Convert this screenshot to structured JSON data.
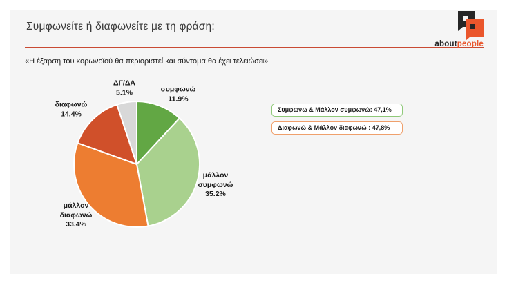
{
  "page": {
    "background": "#ffffff",
    "slide_background": "#f5f5f5"
  },
  "header": {
    "title": "Συμφωνείτε ή διαφωνείτε με τη φράση:",
    "rule_color": "#c94a33",
    "logo": {
      "text_black": "about",
      "text_orange": "people",
      "black": "#262626",
      "orange": "#ea562c"
    }
  },
  "statement": "«Η έξαρση του κορωνοϊού θα περιοριστεί και σύντομα θα έχει τελειώσει»",
  "chart_data": {
    "type": "pie",
    "title": "Συμφωνείτε ή διαφωνείτε με τη φράση:",
    "subtitle": "«Η έξαρση του κορωνοϊού θα περιοριστεί και σύντομα θα έχει τελειώσει»",
    "start_angle_deg": 0,
    "direction": "clockwise",
    "slice_border_color": "#ffffff",
    "slices": [
      {
        "label": "συμφωνώ",
        "value": 11.9,
        "value_label": "11.9%",
        "color": "#62a744"
      },
      {
        "label": "μάλλον συμφωνώ",
        "value": 35.2,
        "value_label": "35.2%",
        "color": "#a9d18e"
      },
      {
        "label": "μάλλον διαφωνώ",
        "value": 33.4,
        "value_label": "33.4%",
        "color": "#ed7d31"
      },
      {
        "label": "διαφωνώ",
        "value": 14.4,
        "value_label": "14.4%",
        "color": "#d0502a"
      },
      {
        "label": "ΔΓ/ΔΑ",
        "value": 5.1,
        "value_label": "5.1%",
        "color": "#d8d8d8"
      }
    ],
    "annotations": [
      {
        "text": "Συμφωνώ & Μάλλον συμφωνώ: 47,1%",
        "border_color": "#8fc979"
      },
      {
        "text": "Διαφωνώ & Μάλλον διαφωνώ : 47,8%",
        "border_color": "#efa06c"
      }
    ]
  }
}
